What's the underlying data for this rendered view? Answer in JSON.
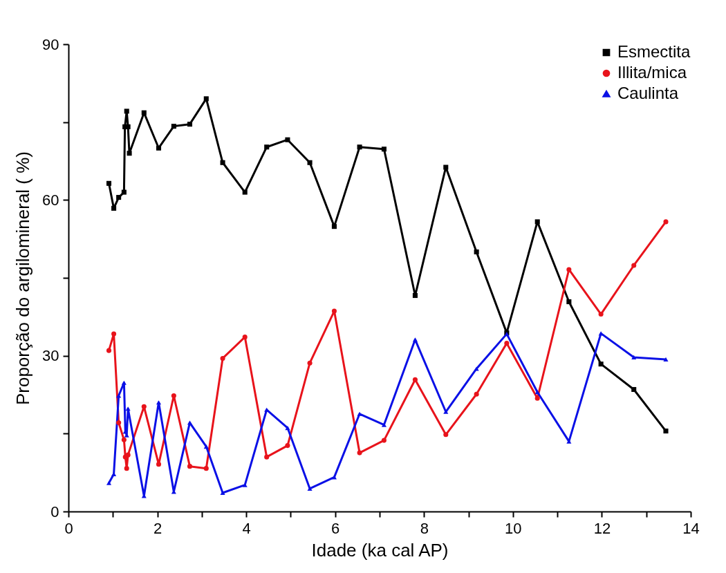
{
  "chart_data": {
    "type": "line",
    "xlabel": "Idade (ka cal AP)",
    "ylabel": "Proporção do argilomineral ( %)",
    "xlim": [
      0,
      14
    ],
    "xticks": [
      0,
      {
        "value": 1,
        "label": null
      },
      2,
      {
        "value": 3,
        "label": null
      },
      4,
      {
        "value": 5,
        "label": null
      },
      6,
      {
        "value": 7,
        "label": null
      },
      8,
      {
        "value": 9,
        "label": null
      },
      10,
      {
        "value": 11,
        "label": null
      },
      12,
      {
        "value": 13,
        "label": null
      },
      14
    ],
    "ylim": [
      0,
      90
    ],
    "yticks": [
      0,
      {
        "value": 15,
        "label": null
      },
      30,
      {
        "value": 45,
        "label": null
      },
      60,
      {
        "value": 75,
        "label": null
      },
      90
    ],
    "grid": false,
    "legend": "top right",
    "series": [
      {
        "name": "Esmectita",
        "color": "#000000",
        "marker": "square",
        "x": [
          0.91,
          1.02,
          1.13,
          1.25,
          1.27,
          1.31,
          1.34,
          1.37,
          1.7,
          2.03,
          2.37,
          2.73,
          3.1,
          3.47,
          3.97,
          4.46,
          4.93,
          5.43,
          5.98,
          6.55,
          7.1,
          7.8,
          8.49,
          9.18,
          9.86,
          10.55,
          11.26,
          11.98,
          12.72,
          13.44
        ],
        "values": [
          63.2,
          58.4,
          60.5,
          61.5,
          74.1,
          77.1,
          74.1,
          69.0,
          76.8,
          70.0,
          74.2,
          74.6,
          79.5,
          67.2,
          61.5,
          70.2,
          71.6,
          67.2,
          54.9,
          70.2,
          69.8,
          41.6,
          66.3,
          50.0,
          34.4,
          55.8,
          40.4,
          28.4,
          23.5,
          15.5
        ]
      },
      {
        "name": "Illita/mica",
        "color": "#e8131b",
        "marker": "circle",
        "x": [
          0.91,
          1.02,
          1.13,
          1.25,
          1.28,
          1.31,
          1.34,
          1.7,
          2.03,
          2.37,
          2.73,
          3.1,
          3.47,
          3.97,
          4.46,
          4.93,
          5.43,
          5.98,
          6.55,
          7.1,
          7.8,
          8.49,
          9.18,
          9.86,
          10.55,
          11.26,
          11.98,
          12.72,
          13.44
        ],
        "values": [
          31.0,
          34.2,
          17.1,
          13.8,
          10.5,
          8.3,
          10.9,
          20.2,
          9.1,
          22.3,
          8.7,
          8.3,
          29.5,
          33.6,
          10.5,
          12.7,
          28.6,
          38.6,
          11.3,
          13.7,
          25.4,
          14.8,
          22.6,
          32.4,
          21.8,
          46.6,
          38.0,
          47.4,
          55.8
        ]
      },
      {
        "name": "Caulinta",
        "color": "#0a10e6",
        "marker": "triangle",
        "x": [
          0.91,
          1.02,
          1.13,
          1.25,
          1.28,
          1.31,
          1.34,
          1.7,
          2.03,
          2.37,
          2.73,
          3.1,
          3.47,
          3.97,
          4.46,
          4.93,
          5.43,
          5.98,
          6.55,
          7.1,
          7.8,
          8.49,
          9.18,
          9.86,
          10.55,
          11.26,
          11.98,
          12.72,
          13.44
        ],
        "values": [
          5.5,
          7.2,
          22.3,
          24.8,
          15.4,
          14.7,
          19.8,
          3.0,
          21.0,
          3.8,
          17.1,
          12.5,
          3.6,
          5.1,
          19.6,
          16.1,
          4.4,
          6.6,
          18.8,
          16.7,
          33.1,
          19.2,
          27.5,
          34.2,
          23.0,
          13.5,
          34.3,
          29.7,
          29.3
        ]
      }
    ]
  }
}
